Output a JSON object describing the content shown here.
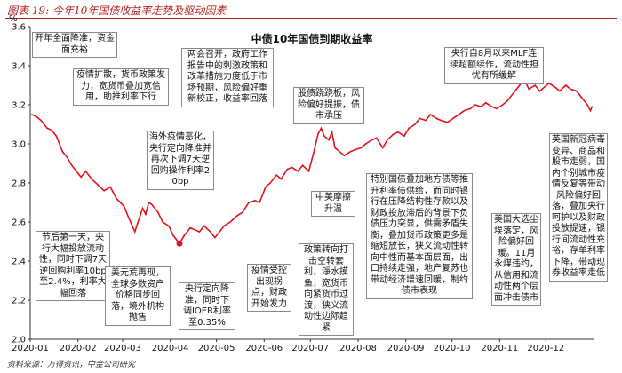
{
  "figure_label": "图表 19: 今年10年国债收益率走势及驱动因素",
  "source_note": "资料来源：万得资讯，中金公司研究",
  "chart_data": {
    "type": "line",
    "title": "中债10年国债到期收益率",
    "ylabel": "%",
    "xlabel": "",
    "ylim": [
      2.0,
      3.6
    ],
    "yticks": [
      "2.0",
      "2.2",
      "2.4",
      "2.6",
      "2.8",
      "3.0",
      "3.2",
      "3.4",
      "3.6"
    ],
    "xticks": [
      "2020-01",
      "2020-02",
      "2020-03",
      "2020-04",
      "2020-05",
      "2020-06",
      "2020-07",
      "2020-08",
      "2020-09",
      "2020-10",
      "2020-11",
      "2020-12"
    ],
    "grid": false,
    "line_color": "#e0141e",
    "highlight_point": {
      "x": "2020-04-07",
      "y": 2.49,
      "color": "#e0141e"
    },
    "series": [
      {
        "points": [
          [
            "2020-01-02",
            3.15
          ],
          [
            "2020-01-05",
            3.14
          ],
          [
            "2020-01-08",
            3.12
          ],
          [
            "2020-01-12",
            3.08
          ],
          [
            "2020-01-15",
            3.07
          ],
          [
            "2020-01-18",
            3.04
          ],
          [
            "2020-01-20",
            3.0
          ],
          [
            "2020-01-22",
            2.96
          ],
          [
            "2020-01-25",
            2.93
          ],
          [
            "2020-01-28",
            2.89
          ],
          [
            "2020-02-03",
            2.83
          ],
          [
            "2020-02-06",
            2.86
          ],
          [
            "2020-02-10",
            2.82
          ],
          [
            "2020-02-14",
            2.79
          ],
          [
            "2020-02-18",
            2.76
          ],
          [
            "2020-02-22",
            2.78
          ],
          [
            "2020-02-26",
            2.72
          ],
          [
            "2020-03-02",
            2.68
          ],
          [
            "2020-03-05",
            2.62
          ],
          [
            "2020-03-09",
            2.55
          ],
          [
            "2020-03-11",
            2.6
          ],
          [
            "2020-03-14",
            2.67
          ],
          [
            "2020-03-16",
            2.64
          ],
          [
            "2020-03-18",
            2.7
          ],
          [
            "2020-03-20",
            2.69
          ],
          [
            "2020-03-24",
            2.65
          ],
          [
            "2020-03-27",
            2.6
          ],
          [
            "2020-03-31",
            2.58
          ],
          [
            "2020-04-03",
            2.53
          ],
          [
            "2020-04-07",
            2.49
          ],
          [
            "2020-04-10",
            2.53
          ],
          [
            "2020-04-14",
            2.57
          ],
          [
            "2020-04-17",
            2.56
          ],
          [
            "2020-04-20",
            2.55
          ],
          [
            "2020-04-23",
            2.58
          ],
          [
            "2020-04-27",
            2.55
          ],
          [
            "2020-04-30",
            2.52
          ],
          [
            "2020-05-06",
            2.58
          ],
          [
            "2020-05-10",
            2.6
          ],
          [
            "2020-05-14",
            2.63
          ],
          [
            "2020-05-18",
            2.65
          ],
          [
            "2020-05-22",
            2.7
          ],
          [
            "2020-05-26",
            2.71
          ],
          [
            "2020-05-29",
            2.7
          ],
          [
            "2020-06-02",
            2.78
          ],
          [
            "2020-06-05",
            2.8
          ],
          [
            "2020-06-09",
            2.84
          ],
          [
            "2020-06-12",
            2.82
          ],
          [
            "2020-06-16",
            2.87
          ],
          [
            "2020-06-19",
            2.88
          ],
          [
            "2020-06-23",
            2.86
          ],
          [
            "2020-06-26",
            2.89
          ],
          [
            "2020-06-30",
            2.86
          ],
          [
            "2020-07-03",
            2.95
          ],
          [
            "2020-07-06",
            3.05
          ],
          [
            "2020-07-08",
            3.08
          ],
          [
            "2020-07-10",
            3.04
          ],
          [
            "2020-07-13",
            3.02
          ],
          [
            "2020-07-15",
            3.06
          ],
          [
            "2020-07-17",
            2.98
          ],
          [
            "2020-07-20",
            2.96
          ],
          [
            "2020-07-23",
            2.94
          ],
          [
            "2020-07-27",
            2.96
          ],
          [
            "2020-07-30",
            2.97
          ],
          [
            "2020-08-03",
            2.98
          ],
          [
            "2020-08-06",
            3.0
          ],
          [
            "2020-08-10",
            3.02
          ],
          [
            "2020-08-13",
            3.03
          ],
          [
            "2020-08-17",
            2.98
          ],
          [
            "2020-08-20",
            3.02
          ],
          [
            "2020-08-24",
            3.05
          ],
          [
            "2020-08-27",
            3.06
          ],
          [
            "2020-08-31",
            3.04
          ],
          [
            "2020-09-03",
            3.08
          ],
          [
            "2020-09-07",
            3.1
          ],
          [
            "2020-09-10",
            3.13
          ],
          [
            "2020-09-14",
            3.12
          ],
          [
            "2020-09-17",
            3.15
          ],
          [
            "2020-09-21",
            3.13
          ],
          [
            "2020-09-24",
            3.12
          ],
          [
            "2020-09-28",
            3.11
          ],
          [
            "2020-10-09",
            3.17
          ],
          [
            "2020-10-13",
            3.18
          ],
          [
            "2020-10-16",
            3.2
          ],
          [
            "2020-10-20",
            3.19
          ],
          [
            "2020-10-23",
            3.21
          ],
          [
            "2020-10-27",
            3.19
          ],
          [
            "2020-10-30",
            3.18
          ],
          [
            "2020-11-03",
            3.2
          ],
          [
            "2020-11-06",
            3.22
          ],
          [
            "2020-11-10",
            3.26
          ],
          [
            "2020-11-13",
            3.29
          ],
          [
            "2020-11-17",
            3.33
          ],
          [
            "2020-11-20",
            3.28
          ],
          [
            "2020-11-24",
            3.3
          ],
          [
            "2020-11-27",
            3.27
          ],
          [
            "2020-11-30",
            3.29
          ],
          [
            "2020-12-03",
            3.31
          ],
          [
            "2020-12-07",
            3.29
          ],
          [
            "2020-12-10",
            3.27
          ],
          [
            "2020-12-14",
            3.3
          ],
          [
            "2020-12-17",
            3.28
          ],
          [
            "2020-12-21",
            3.27
          ],
          [
            "2020-12-24",
            3.24
          ],
          [
            "2020-12-28",
            3.2
          ],
          [
            "2020-12-30",
            3.17
          ],
          [
            "2020-12-31",
            3.19
          ]
        ]
      }
    ],
    "annotations": [
      "开年全面降准，资金面充裕",
      "疫情扩散，货币政策发力，宽货币叠加宽信用，助推利率下行",
      "节后第一天，央行大幅投放流动性，同时下调7天逆回购利率10bp至2.4%，利率大幅回落",
      "美元荒再现，全球多数资产价格同步回落，境外机构抛售",
      "海外疫情恶化，央行定向降准并再次下调7天逆回购操作利率20bp",
      "央行定向降准，同时下调IOER利率至0.35%",
      "两会召开，政府工作报告中的刺激政策和改革措施力度低于市场预期，风险偏好重新校正，收益率回落",
      "疫情受控出现拐点，财政开始发力",
      "股债跷跷板，风险偏好提振，债市承压",
      "政策转向打击空转套利，淨水摸鱼，宽货币向紧货币过渡，狭义流动性边际趋紧",
      "中美摩擦升温",
      "特别国债叠加地方债等推升利率债供给，而同时银行在压降结构性存款以及财政投放滞后的背景下负债压力突显，供需矛盾失衡，叠加货币政策更多是缩短放长，狭义流动性转向中性而基本面层面，出口持续走强，地产复苏也带动经济增速回暖，制约债市表现",
      "央行自8月以来MLF连续超额续作，流动性担忧有所缓解",
      "美国大选尘埃落定，风险偏好回暖。11月永煤违约，从信用和流动性两个层面冲击债市",
      "英国新冠病毒变异、商品和股市走弱，国内个别城市疫情反复等带动风险偏好回落，叠加央行呵护以及财政投放提速，银行间流动性充裕，存单利率下降，带动现券收益率走低"
    ]
  }
}
